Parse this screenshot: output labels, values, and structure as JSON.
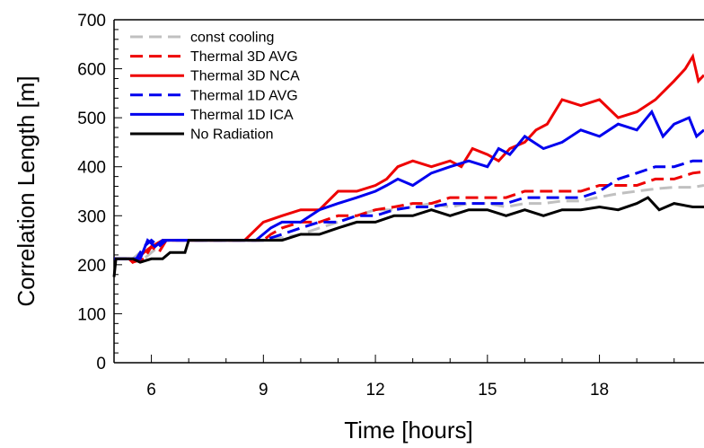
{
  "chart_data": {
    "type": "line",
    "title": "",
    "xlabel": "Time [hours]",
    "ylabel": "Correlation Length [m]",
    "xlim": [
      5,
      20.8
    ],
    "ylim": [
      0,
      700
    ],
    "xticks": [
      6,
      9,
      12,
      15,
      18
    ],
    "yticks": [
      0,
      100,
      200,
      300,
      400,
      500,
      600,
      700
    ],
    "grid": false,
    "legend_position": "top-left",
    "series": [
      {
        "name": "const cooling",
        "color": "#c0c0c0",
        "dash": "dashed",
        "points": [
          [
            5,
            212
          ],
          [
            5.5,
            212
          ],
          [
            5.7,
            225
          ],
          [
            5.8,
            212
          ],
          [
            6,
            225
          ],
          [
            6.2,
            237
          ],
          [
            6.4,
            250
          ],
          [
            7,
            250
          ],
          [
            8,
            250
          ],
          [
            9,
            250
          ],
          [
            9.5,
            255
          ],
          [
            10,
            262
          ],
          [
            10.5,
            275
          ],
          [
            11,
            287
          ],
          [
            11.5,
            300
          ],
          [
            12,
            312
          ],
          [
            12.5,
            312
          ],
          [
            13,
            318
          ],
          [
            13.5,
            325
          ],
          [
            14,
            318
          ],
          [
            14.5,
            325
          ],
          [
            15,
            325
          ],
          [
            15.5,
            318
          ],
          [
            16,
            325
          ],
          [
            16.5,
            325
          ],
          [
            17,
            330
          ],
          [
            17.5,
            330
          ],
          [
            18,
            338
          ],
          [
            18.5,
            345
          ],
          [
            19,
            350
          ],
          [
            19.5,
            355
          ],
          [
            20,
            358
          ],
          [
            20.5,
            358
          ],
          [
            20.8,
            362
          ]
        ]
      },
      {
        "name": "Thermal 3D AVG",
        "color": "#ee0000",
        "dash": "dashed",
        "points": [
          [
            5,
            212
          ],
          [
            5.4,
            212
          ],
          [
            5.5,
            205
          ],
          [
            5.8,
            212
          ],
          [
            6,
            237
          ],
          [
            6.2,
            225
          ],
          [
            6.4,
            250
          ],
          [
            7,
            250
          ],
          [
            8,
            250
          ],
          [
            9,
            250
          ],
          [
            9.2,
            262
          ],
          [
            9.5,
            275
          ],
          [
            10,
            287
          ],
          [
            10.5,
            287
          ],
          [
            11,
            300
          ],
          [
            11.5,
            300
          ],
          [
            12,
            312
          ],
          [
            12.5,
            318
          ],
          [
            13,
            325
          ],
          [
            13.5,
            325
          ],
          [
            14,
            337
          ],
          [
            14.5,
            337
          ],
          [
            15,
            337
          ],
          [
            15.5,
            337
          ],
          [
            16,
            350
          ],
          [
            16.5,
            350
          ],
          [
            17,
            350
          ],
          [
            17.5,
            350
          ],
          [
            18,
            362
          ],
          [
            18.5,
            362
          ],
          [
            19,
            362
          ],
          [
            19.5,
            375
          ],
          [
            20,
            375
          ],
          [
            20.5,
            387
          ],
          [
            20.8,
            390
          ]
        ]
      },
      {
        "name": "Thermal 3D NCA",
        "color": "#ee0000",
        "dash": "solid",
        "points": [
          [
            5,
            212
          ],
          [
            5.4,
            212
          ],
          [
            5.5,
            205
          ],
          [
            5.8,
            225
          ],
          [
            6,
            237
          ],
          [
            6.3,
            250
          ],
          [
            7,
            250
          ],
          [
            8,
            250
          ],
          [
            8.5,
            250
          ],
          [
            9,
            287
          ],
          [
            9.5,
            300
          ],
          [
            10,
            312
          ],
          [
            10.5,
            312
          ],
          [
            11,
            350
          ],
          [
            11.5,
            350
          ],
          [
            12,
            362
          ],
          [
            12.3,
            375
          ],
          [
            12.6,
            400
          ],
          [
            13,
            412
          ],
          [
            13.5,
            400
          ],
          [
            14,
            412
          ],
          [
            14.3,
            400
          ],
          [
            14.6,
            437
          ],
          [
            15,
            425
          ],
          [
            15.3,
            412
          ],
          [
            15.6,
            437
          ],
          [
            16,
            450
          ],
          [
            16.3,
            475
          ],
          [
            16.6,
            487
          ],
          [
            17,
            537
          ],
          [
            17.5,
            525
          ],
          [
            18,
            537
          ],
          [
            18.5,
            500
          ],
          [
            19,
            512
          ],
          [
            19.5,
            537
          ],
          [
            20,
            575
          ],
          [
            20.3,
            600
          ],
          [
            20.5,
            625
          ],
          [
            20.65,
            575
          ],
          [
            20.8,
            587
          ]
        ]
      },
      {
        "name": "Thermal 1D AVG",
        "color": "#0000ee",
        "dash": "dashed",
        "points": [
          [
            5,
            212
          ],
          [
            5.4,
            212
          ],
          [
            5.6,
            212
          ],
          [
            5.8,
            237
          ],
          [
            6,
            250
          ],
          [
            6.2,
            237
          ],
          [
            6.4,
            250
          ],
          [
            7,
            250
          ],
          [
            8,
            250
          ],
          [
            9,
            250
          ],
          [
            9.5,
            262
          ],
          [
            10,
            275
          ],
          [
            10.5,
            287
          ],
          [
            11,
            287
          ],
          [
            11.5,
            300
          ],
          [
            12,
            300
          ],
          [
            12.5,
            312
          ],
          [
            13,
            318
          ],
          [
            13.5,
            318
          ],
          [
            14,
            325
          ],
          [
            14.5,
            325
          ],
          [
            15,
            325
          ],
          [
            15.5,
            325
          ],
          [
            16,
            337
          ],
          [
            16.5,
            337
          ],
          [
            17,
            337
          ],
          [
            17.5,
            337
          ],
          [
            18,
            350
          ],
          [
            18.5,
            375
          ],
          [
            19,
            387
          ],
          [
            19.5,
            400
          ],
          [
            20,
            400
          ],
          [
            20.5,
            412
          ],
          [
            20.8,
            412
          ]
        ]
      },
      {
        "name": "Thermal 1D ICA",
        "color": "#0000ee",
        "dash": "solid",
        "points": [
          [
            5,
            212
          ],
          [
            5.4,
            212
          ],
          [
            5.7,
            212
          ],
          [
            5.9,
            250
          ],
          [
            6.1,
            237
          ],
          [
            6.3,
            250
          ],
          [
            7,
            250
          ],
          [
            8,
            250
          ],
          [
            8.8,
            250
          ],
          [
            9.2,
            275
          ],
          [
            9.5,
            287
          ],
          [
            10,
            287
          ],
          [
            10.5,
            312
          ],
          [
            11,
            325
          ],
          [
            11.5,
            337
          ],
          [
            12,
            350
          ],
          [
            12.3,
            362
          ],
          [
            12.6,
            375
          ],
          [
            13,
            362
          ],
          [
            13.5,
            387
          ],
          [
            14,
            400
          ],
          [
            14.5,
            412
          ],
          [
            15,
            400
          ],
          [
            15.3,
            437
          ],
          [
            15.6,
            425
          ],
          [
            16,
            462
          ],
          [
            16.5,
            437
          ],
          [
            17,
            450
          ],
          [
            17.5,
            475
          ],
          [
            18,
            462
          ],
          [
            18.5,
            487
          ],
          [
            19,
            475
          ],
          [
            19.4,
            512
          ],
          [
            19.7,
            462
          ],
          [
            20,
            487
          ],
          [
            20.4,
            500
          ],
          [
            20.6,
            462
          ],
          [
            20.8,
            475
          ]
        ]
      },
      {
        "name": "No Radiation",
        "color": "#000000",
        "dash": "solid",
        "points": [
          [
            5,
            175
          ],
          [
            5.05,
            212
          ],
          [
            5.5,
            212
          ],
          [
            5.7,
            205
          ],
          [
            6,
            212
          ],
          [
            6.3,
            212
          ],
          [
            6.5,
            225
          ],
          [
            6.9,
            225
          ],
          [
            7,
            250
          ],
          [
            8,
            250
          ],
          [
            9,
            250
          ],
          [
            9.5,
            250
          ],
          [
            10,
            262
          ],
          [
            10.5,
            262
          ],
          [
            11,
            275
          ],
          [
            11.5,
            287
          ],
          [
            12,
            287
          ],
          [
            12.5,
            300
          ],
          [
            13,
            300
          ],
          [
            13.5,
            312
          ],
          [
            14,
            300
          ],
          [
            14.5,
            312
          ],
          [
            15,
            312
          ],
          [
            15.5,
            300
          ],
          [
            16,
            312
          ],
          [
            16.5,
            300
          ],
          [
            17,
            312
          ],
          [
            17.5,
            312
          ],
          [
            18,
            318
          ],
          [
            18.5,
            312
          ],
          [
            19,
            325
          ],
          [
            19.3,
            337
          ],
          [
            19.6,
            312
          ],
          [
            20,
            325
          ],
          [
            20.5,
            318
          ],
          [
            20.8,
            318
          ]
        ]
      }
    ]
  }
}
